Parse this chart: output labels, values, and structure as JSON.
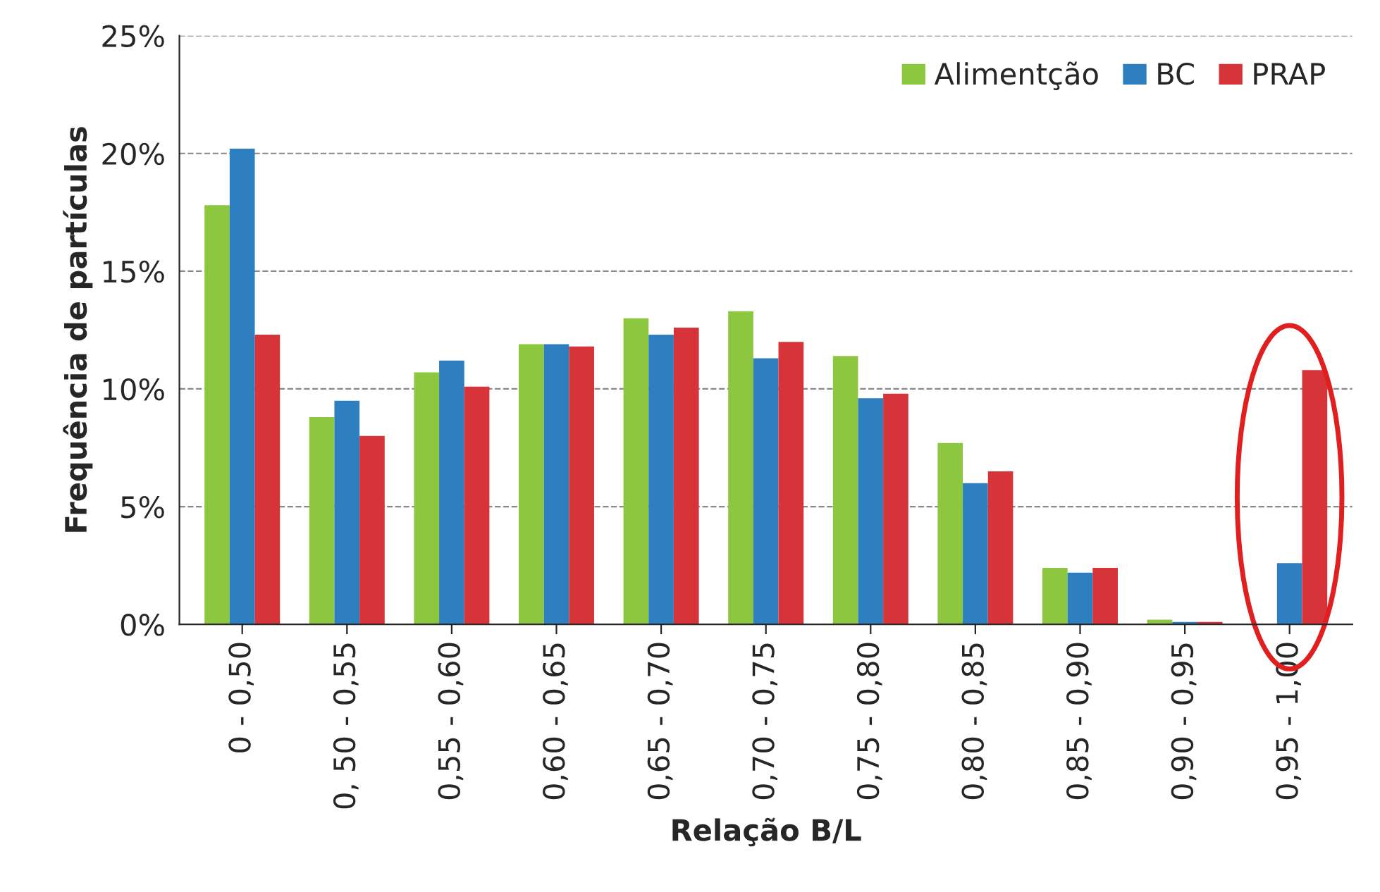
{
  "chart_data": {
    "type": "bar",
    "xlabel": "Relação B/L",
    "ylabel": "Frequência de partículas",
    "categories": [
      "0 - 0,50",
      "0, 50 - 0,55",
      "0,55 - 0,60",
      "0,60 - 0,65",
      "0,65 - 0,70",
      "0,70 - 0,75",
      "0,75 - 0,80",
      "0,80 - 0,85",
      "0,85 - 0,90",
      "0,90 - 0,95",
      "0,95 - 1,00"
    ],
    "series": [
      {
        "name": "Alimentção",
        "color": "#8dc63f",
        "values": [
          17.8,
          8.8,
          10.7,
          11.9,
          13.0,
          13.3,
          11.4,
          7.7,
          2.4,
          0.2,
          null
        ]
      },
      {
        "name": "BC",
        "color": "#2e7fc0",
        "values": [
          20.2,
          9.5,
          11.2,
          11.9,
          12.3,
          11.3,
          9.6,
          6.0,
          2.2,
          0.1,
          2.6
        ]
      },
      {
        "name": "PRAP",
        "color": "#d7343a",
        "values": [
          12.3,
          8.0,
          10.1,
          11.8,
          12.6,
          12.0,
          9.8,
          6.5,
          2.4,
          0.1,
          10.8
        ]
      }
    ],
    "ylim": [
      0,
      25
    ],
    "yticks": [
      {
        "value": 0,
        "label": "0%"
      },
      {
        "value": 5,
        "label": "5%"
      },
      {
        "value": 10,
        "label": "10%"
      },
      {
        "value": 15,
        "label": "15%"
      },
      {
        "value": 20,
        "label": "20%"
      },
      {
        "value": 25,
        "label": "25%"
      }
    ],
    "grid": "y",
    "legend": "top right"
  }
}
